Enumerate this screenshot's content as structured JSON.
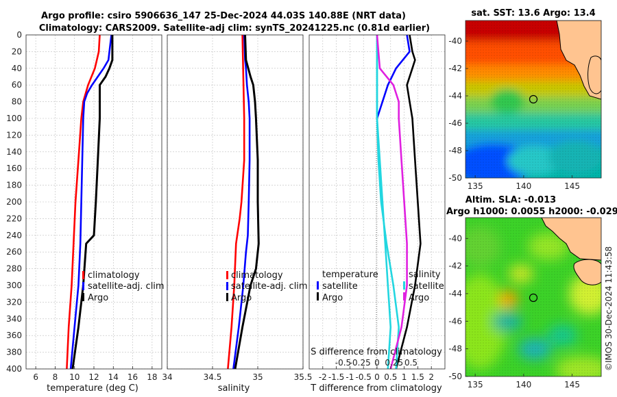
{
  "titles": {
    "line1": "Argo profile: csiro 5906636_147 25-Dec-2024 44.03S 140.88E (NRT data)",
    "line2": "Climatology: CARS2009. Satellite-adj clim: synTS_20241225.nc (0.81d earlier)",
    "sst": "sat. SST: 13.6 Argo: 13.4",
    "sla1": "Altim. SLA: -0.013",
    "sla2": "Argo h1000: 0.0055 h2000: -0.029"
  },
  "watermark": "©IMOS 30-Dec-2024 11:43:58",
  "colors": {
    "climatology": "#ff0000",
    "satellite": "#0000ff",
    "argo": "#000000",
    "sal_sat": "#22d6e0",
    "sal_clim": "#e020e0"
  },
  "legend": {
    "clim": "climatology",
    "sat": "satellite-adj. clim",
    "argo": "Argo",
    "temperature": "temperature",
    "salinity": "salinity",
    "satellite": "satellite"
  },
  "chart_data": [
    {
      "type": "line",
      "name": "temperature",
      "xlabel": "temperature (deg C)",
      "xlim": [
        5,
        19
      ],
      "ylim": [
        0,
        400
      ],
      "xticks": [
        "6",
        "8",
        "10",
        "12",
        "14",
        "16",
        "18"
      ],
      "yticks": [
        "0",
        "20",
        "40",
        "60",
        "80",
        "100",
        "120",
        "140",
        "160",
        "180",
        "200",
        "220",
        "240",
        "260",
        "280",
        "300",
        "320",
        "340",
        "360",
        "380",
        "400"
      ],
      "series": [
        {
          "name": "climatology",
          "depth": [
            0,
            20,
            40,
            60,
            80,
            100,
            150,
            200,
            250,
            300,
            350,
            400
          ],
          "values": [
            12.6,
            12.5,
            12.1,
            11.4,
            10.9,
            10.7,
            10.4,
            10.1,
            9.9,
            9.7,
            9.4,
            9.2
          ]
        },
        {
          "name": "satellite-adj. clim",
          "depth": [
            0,
            20,
            30,
            40,
            60,
            70,
            80,
            100,
            150,
            200,
            250,
            300,
            350,
            400
          ],
          "values": [
            13.8,
            13.6,
            13.5,
            13.0,
            11.8,
            11.3,
            11.0,
            10.9,
            10.8,
            10.7,
            10.6,
            10.4,
            10.0,
            9.6
          ]
        },
        {
          "name": "Argo",
          "depth": [
            0,
            30,
            40,
            50,
            60,
            80,
            100,
            150,
            200,
            240,
            250,
            300,
            350,
            400
          ],
          "values": [
            13.9,
            13.9,
            13.6,
            13.2,
            12.6,
            12.6,
            12.6,
            12.4,
            12.2,
            12.0,
            11.2,
            10.9,
            10.4,
            9.8
          ]
        }
      ]
    },
    {
      "type": "line",
      "name": "salinity",
      "xlabel": "salinity",
      "xlim": [
        34,
        35.5
      ],
      "ylim": [
        0,
        400
      ],
      "xticks": [
        "34",
        "34.5",
        "35",
        "35.5"
      ],
      "series": [
        {
          "name": "climatology",
          "depth": [
            0,
            50,
            100,
            150,
            200,
            220,
            250,
            300,
            350,
            400
          ],
          "values": [
            34.83,
            34.84,
            34.85,
            34.85,
            34.82,
            34.8,
            34.76,
            34.74,
            34.71,
            34.67
          ]
        },
        {
          "name": "satellite-adj. clim",
          "depth": [
            0,
            30,
            40,
            60,
            80,
            100,
            150,
            200,
            240,
            260,
            300,
            350,
            400
          ],
          "values": [
            34.85,
            34.86,
            34.87,
            34.88,
            34.9,
            34.91,
            34.91,
            34.9,
            34.89,
            34.87,
            34.84,
            34.79,
            34.73
          ]
        },
        {
          "name": "Argo",
          "depth": [
            0,
            30,
            50,
            60,
            80,
            100,
            150,
            200,
            250,
            280,
            300,
            350,
            400
          ],
          "values": [
            34.86,
            34.87,
            34.92,
            34.95,
            34.97,
            34.98,
            35.0,
            35.0,
            35.01,
            34.98,
            34.92,
            34.83,
            34.75
          ]
        }
      ]
    },
    {
      "type": "line",
      "name": "difference",
      "xlabel": "T difference from climatology",
      "secondary_xlabel": "S difference from climatology",
      "xlim": [
        -2.5,
        2.5
      ],
      "ylim": [
        0,
        400
      ],
      "xticks": [
        "-2",
        "-1.5",
        "-1",
        "-0.5",
        "0",
        "0.5",
        "1",
        "1.5",
        "2"
      ],
      "secondary_xticks": [
        "-0.5",
        "-0.25",
        "0",
        "0.25",
        "0.5"
      ],
      "series": [
        {
          "name": "T satellite",
          "depth": [
            0,
            20,
            40,
            80,
            100,
            150,
            200,
            250,
            300,
            350,
            400
          ],
          "values": [
            0.0,
            0.0,
            0.0,
            0.0,
            0.0,
            0.1,
            0.2,
            0.3,
            0.4,
            0.5,
            0.4
          ]
        },
        {
          "name": "T Argo",
          "depth": [
            0,
            20,
            30,
            40,
            60,
            80,
            100,
            150,
            200,
            250,
            300,
            350,
            400
          ],
          "values": [
            1.2,
            1.3,
            1.4,
            1.3,
            1.1,
            1.2,
            1.3,
            1.4,
            1.5,
            1.6,
            1.4,
            1.1,
            0.7
          ]
        },
        {
          "name": "T satellite (blue)",
          "depth": [
            0,
            20,
            40,
            60,
            80,
            100
          ],
          "values": [
            1.1,
            1.2,
            0.7,
            0.4,
            0.2,
            0.0
          ]
        },
        {
          "name": "S satellite",
          "depth": [
            0,
            100,
            150,
            200,
            250,
            300,
            350,
            400
          ],
          "values": [
            0.0,
            0.0,
            0.05,
            0.15,
            0.35,
            0.6,
            0.8,
            0.7
          ]
        },
        {
          "name": "S climatology",
          "depth": [
            0,
            40,
            60,
            80,
            100,
            150,
            200,
            250,
            300,
            350,
            400
          ],
          "values": [
            0.0,
            0.1,
            0.6,
            0.8,
            0.8,
            0.9,
            1.0,
            1.1,
            1.1,
            0.9,
            0.5
          ]
        }
      ]
    },
    {
      "type": "heatmap",
      "name": "sst-map",
      "xticks": [
        "135",
        "140",
        "145"
      ],
      "yticks": [
        "-40",
        "-42",
        "-44",
        "-46",
        "-48",
        "-50"
      ],
      "xlim": [
        134,
        148
      ],
      "ylim": [
        -50,
        -38.5
      ],
      "marker": {
        "lon": 140.88,
        "lat": -44.03
      }
    },
    {
      "type": "heatmap",
      "name": "sla-map",
      "xticks": [
        "135",
        "140",
        "145"
      ],
      "yticks": [
        "-40",
        "-42",
        "-44",
        "-46",
        "-48",
        "-50"
      ],
      "xlim": [
        134,
        148
      ],
      "ylim": [
        -50,
        -38.5
      ],
      "marker": {
        "lon": 140.88,
        "lat": -44.03
      }
    }
  ]
}
